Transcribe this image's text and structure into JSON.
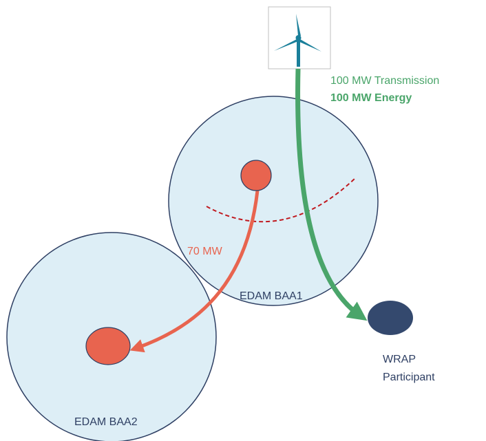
{
  "labels": {
    "transmission": "100 MW Transmission",
    "energy": "100 MW Energy",
    "flow": "70 MW",
    "baa1": "EDAM BAA1",
    "baa2": "EDAM BAA2",
    "wrap_line1": "WRAP",
    "wrap_line2": "Participant"
  }
}
